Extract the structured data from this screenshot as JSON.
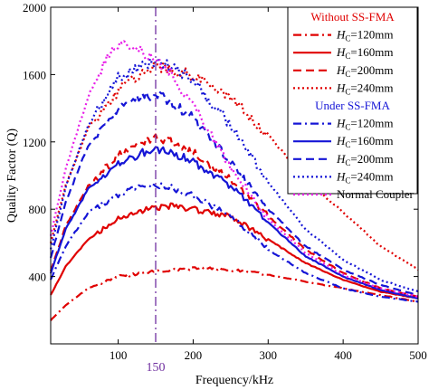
{
  "chart_data": {
    "type": "line",
    "xlabel": "Frequency/kHz",
    "ylabel": "Quality Factor (Q)",
    "xlim": [
      10,
      500
    ],
    "ylim": [
      0,
      2000
    ],
    "xticks": [
      100,
      200,
      300,
      400,
      500
    ],
    "yticks": [
      400,
      800,
      1200,
      1600,
      2000
    ],
    "grid": false,
    "legend_position": "top-right",
    "marker": {
      "x": 150,
      "label": "150",
      "color": "#7030a0"
    },
    "groups": [
      {
        "heading": "Without SS-FMA",
        "color": "#e00000"
      },
      {
        "heading": "Under SS-FMA",
        "color": "#1515d6"
      }
    ],
    "series": [
      {
        "group": 0,
        "legend_var": "H",
        "legend_sub": "C",
        "legend_value": "=120mm",
        "color": "#e00000",
        "dash": "dashdot",
        "x": [
          10,
          30,
          60,
          100,
          150,
          200,
          250,
          300,
          350,
          400,
          450,
          500
        ],
        "y": [
          140,
          230,
          330,
          400,
          430,
          450,
          440,
          410,
          370,
          330,
          290,
          250
        ]
      },
      {
        "group": 0,
        "legend_var": "H",
        "legend_sub": "C",
        "legend_value": "=160mm",
        "color": "#e00000",
        "dash": "solid",
        "x": [
          10,
          30,
          60,
          100,
          130,
          150,
          170,
          200,
          250,
          300,
          350,
          400,
          450,
          500
        ],
        "y": [
          290,
          460,
          620,
          740,
          790,
          810,
          820,
          800,
          760,
          620,
          480,
          380,
          310,
          270
        ]
      },
      {
        "group": 0,
        "legend_var": "H",
        "legend_sub": "C",
        "legend_value": "=200mm",
        "color": "#e00000",
        "dash": "dash",
        "x": [
          10,
          30,
          60,
          100,
          130,
          150,
          170,
          200,
          250,
          300,
          350,
          400,
          450,
          500
        ],
        "y": [
          430,
          700,
          940,
          1120,
          1190,
          1230,
          1200,
          1140,
          980,
          760,
          560,
          420,
          330,
          280
        ]
      },
      {
        "group": 0,
        "legend_var": "H",
        "legend_sub": "C",
        "legend_value": "=240mm",
        "color": "#e00000",
        "dash": "dot",
        "x": [
          10,
          30,
          60,
          100,
          130,
          150,
          170,
          200,
          250,
          300,
          350,
          400,
          450,
          500
        ],
        "y": [
          600,
          940,
          1280,
          1500,
          1600,
          1640,
          1630,
          1590,
          1460,
          1240,
          980,
          780,
          580,
          440
        ]
      },
      {
        "group": 1,
        "legend_var": "H",
        "legend_sub": "C",
        "legend_value": "=120mm",
        "color": "#1515d6",
        "dash": "dashdot",
        "x": [
          10,
          30,
          60,
          100,
          130,
          150,
          170,
          200,
          250,
          300,
          350,
          400,
          450,
          500
        ],
        "y": [
          380,
          580,
          780,
          890,
          930,
          940,
          930,
          880,
          760,
          560,
          420,
          330,
          280,
          250
        ]
      },
      {
        "group": 1,
        "legend_var": "H",
        "legend_sub": "C",
        "legend_value": "=160mm",
        "color": "#1515d6",
        "dash": "solid",
        "x": [
          10,
          30,
          60,
          100,
          130,
          150,
          170,
          200,
          250,
          300,
          350,
          400,
          450,
          500
        ],
        "y": [
          420,
          680,
          920,
          1070,
          1130,
          1160,
          1140,
          1080,
          940,
          720,
          520,
          400,
          320,
          270
        ]
      },
      {
        "group": 1,
        "legend_var": "H",
        "legend_sub": "C",
        "legend_value": "=200mm",
        "color": "#1515d6",
        "dash": "dash",
        "x": [
          10,
          30,
          60,
          100,
          130,
          150,
          170,
          200,
          250,
          300,
          350,
          400,
          450,
          500
        ],
        "y": [
          510,
          840,
          1180,
          1390,
          1460,
          1480,
          1440,
          1340,
          1080,
          800,
          580,
          440,
          350,
          290
        ]
      },
      {
        "group": 1,
        "legend_var": "H",
        "legend_sub": "C",
        "legend_value": "=240mm",
        "color": "#1515d6",
        "dash": "dot",
        "x": [
          10,
          30,
          60,
          100,
          130,
          150,
          170,
          200,
          250,
          300,
          350,
          400,
          450,
          500
        ],
        "y": [
          560,
          930,
          1300,
          1580,
          1650,
          1680,
          1650,
          1560,
          1300,
          960,
          680,
          500,
          380,
          310
        ]
      },
      {
        "group": 2,
        "legend_text": "Normal Coupler",
        "color": "#e81ce8",
        "dash": "dot",
        "x": [
          10,
          30,
          60,
          90,
          110,
          130,
          150,
          170,
          200,
          250,
          300,
          350,
          400,
          450,
          500
        ],
        "y": [
          640,
          1040,
          1470,
          1740,
          1780,
          1740,
          1690,
          1600,
          1420,
          1050,
          740,
          540,
          410,
          330,
          280
        ]
      }
    ]
  }
}
